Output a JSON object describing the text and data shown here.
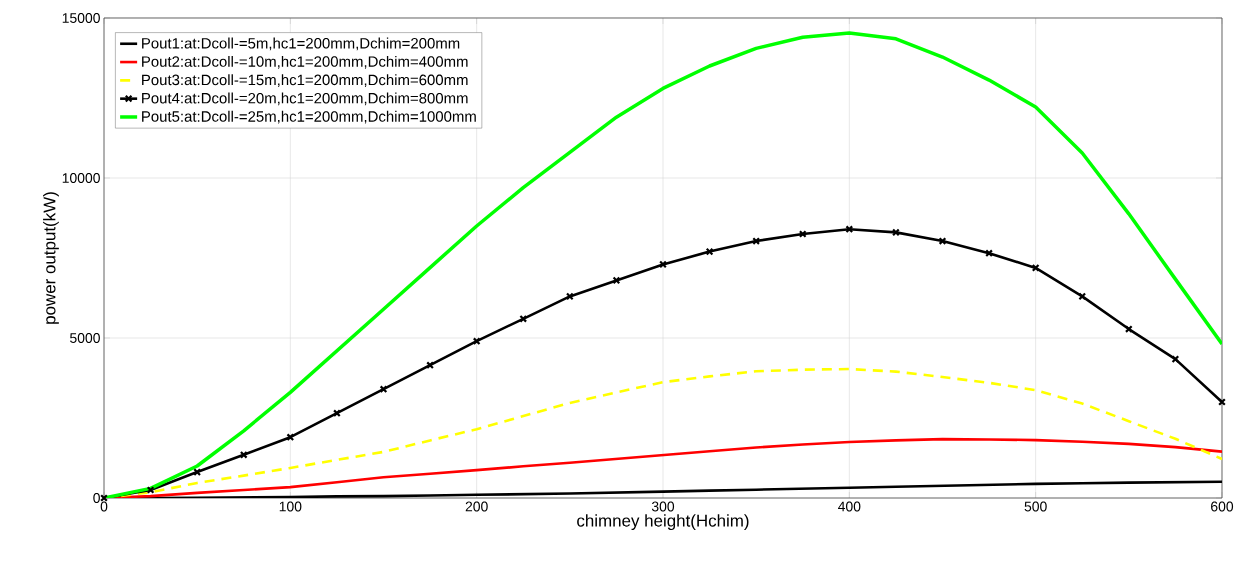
{
  "chart_data": {
    "type": "line",
    "xlabel": "chimney height(Hchim)",
    "ylabel": "power output(kW)",
    "x": [
      0,
      25,
      50,
      75,
      100,
      125,
      150,
      175,
      200,
      225,
      250,
      275,
      300,
      325,
      350,
      375,
      400,
      425,
      450,
      475,
      500,
      525,
      550,
      575,
      600
    ],
    "xlim": [
      0,
      600
    ],
    "ylim": [
      0,
      15000
    ],
    "xticks": [
      0,
      100,
      200,
      300,
      400,
      500,
      600
    ],
    "yticks": [
      0,
      5000,
      10000,
      15000
    ],
    "grid": true,
    "legend": "top left",
    "series": [
      {
        "name": "Pout1:at:Dcoll-=5m,hc1=200mm,Dchim=200mm",
        "color": "#000000",
        "line_style": "solid",
        "marker": "none",
        "values": [
          0,
          0,
          10,
          20,
          30,
          50,
          60,
          80,
          100,
          120,
          140,
          170,
          200,
          230,
          260,
          290,
          320,
          350,
          380,
          410,
          440,
          460,
          480,
          495,
          510
        ]
      },
      {
        "name": "Pout2:at:Dcoll-=10m,hc1=200mm,Dchim=400mm",
        "color": "#ff0000",
        "line_style": "solid",
        "marker": "none",
        "values": [
          0,
          60,
          160,
          250,
          340,
          490,
          650,
          760,
          870,
          990,
          1100,
          1220,
          1340,
          1460,
          1580,
          1670,
          1750,
          1800,
          1840,
          1830,
          1810,
          1760,
          1690,
          1590,
          1450
        ]
      },
      {
        "name": "Pout3:at:Dcoll-=15m,hc1=200mm,Dchim=600mm",
        "color": "#ffff00",
        "line_style": "dashed",
        "marker": "none",
        "values": [
          0,
          180,
          470,
          700,
          940,
          1190,
          1440,
          1800,
          2150,
          2560,
          2970,
          3300,
          3620,
          3800,
          3960,
          4010,
          4030,
          3950,
          3780,
          3600,
          3370,
          2950,
          2400,
          1850,
          1220
        ]
      },
      {
        "name": "Pout4:at:Dcoll-=20m,hc1=200mm,Dchim=800mm",
        "color": "#000000",
        "line_style": "solid",
        "marker": "cross",
        "values": [
          0,
          250,
          810,
          1350,
          1900,
          2650,
          3400,
          4150,
          4900,
          5600,
          6300,
          6800,
          7300,
          7700,
          8030,
          8250,
          8400,
          8300,
          8030,
          7650,
          7190,
          6300,
          5280,
          4340,
          3000
        ]
      },
      {
        "name": "Pout5:at:Dcoll-=25m,hc1=200mm,Dchim=1000mm",
        "color": "#00ff00",
        "line_style": "solid",
        "marker": "none",
        "values": [
          0,
          300,
          1000,
          2100,
          3300,
          4600,
          5900,
          7200,
          8500,
          9700,
          10800,
          11900,
          12800,
          13500,
          14050,
          14400,
          14530,
          14350,
          13780,
          13060,
          12220,
          10780,
          8880,
          6840,
          4810
        ]
      }
    ]
  }
}
